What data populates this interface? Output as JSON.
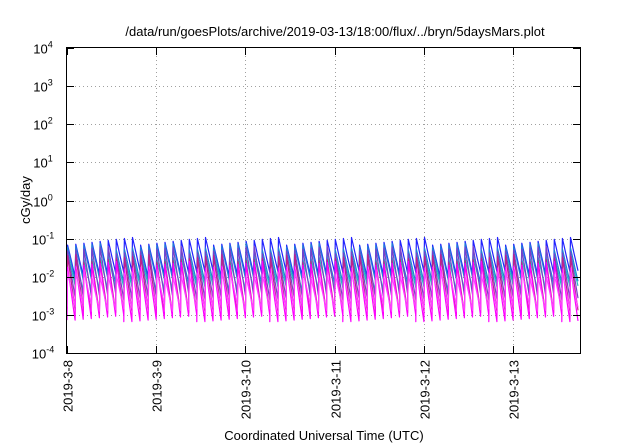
{
  "chart_data": {
    "type": "line",
    "title": "/data/run/goesPlots/archive/2019-03-13/18:00/flux/../bryn/5daysMars.plot",
    "xlabel": "Coordinated Universal Time (UTC)",
    "ylabel": "cGy/day",
    "yscale": "log",
    "ylim": [
      0.0001,
      10000
    ],
    "y_ticks": [
      {
        "base": "10",
        "exp": "-4",
        "value": 0.0001
      },
      {
        "base": "10",
        "exp": "-3",
        "value": 0.001
      },
      {
        "base": "10",
        "exp": "-2",
        "value": 0.01
      },
      {
        "base": "10",
        "exp": "-1",
        "value": 0.1
      },
      {
        "base": "10",
        "exp": "0",
        "value": 1
      },
      {
        "base": "10",
        "exp": "1",
        "value": 10
      },
      {
        "base": "10",
        "exp": "2",
        "value": 100
      },
      {
        "base": "10",
        "exp": "3",
        "value": 1000
      },
      {
        "base": "10",
        "exp": "4",
        "value": 10000
      }
    ],
    "xlim": [
      "2019-03-08T00:00",
      "2019-03-13T18:00"
    ],
    "x_ticks": [
      {
        "label": "2019-3-8",
        "date": "2019-03-08"
      },
      {
        "label": "2019-3-9",
        "date": "2019-03-09"
      },
      {
        "label": "2019-3-10",
        "date": "2019-03-10"
      },
      {
        "label": "2019-3-11",
        "date": "2019-03-11"
      },
      {
        "label": "2019-3-12",
        "date": "2019-03-12"
      },
      {
        "label": "2019-3-13",
        "date": "2019-03-13"
      }
    ],
    "grid": true,
    "legend": "none",
    "series": [
      {
        "color": "#2222ff",
        "daily_pulses": 11,
        "peak": 0.085,
        "trough": 0.012
      },
      {
        "color": "#1f7fd8",
        "daily_pulses": 11,
        "peak": 0.06,
        "trough": 0.008
      },
      {
        "color": "#22c0c0",
        "daily_pulses": 11,
        "peak": 0.035,
        "trough": 0.005
      },
      {
        "color": "#7a3fc8",
        "daily_pulses": 11,
        "peak": 0.05,
        "trough": 0.003
      },
      {
        "color": "#c0208a",
        "daily_pulses": 11,
        "peak": 0.03,
        "trough": 0.0012
      },
      {
        "color": "#ff00ff",
        "daily_pulses": 11,
        "peak": 0.02,
        "trough": 0.0008
      },
      {
        "color": "#ff40ff",
        "daily_pulses": 11,
        "peak": 0.012,
        "trough": 0.0015
      }
    ]
  }
}
